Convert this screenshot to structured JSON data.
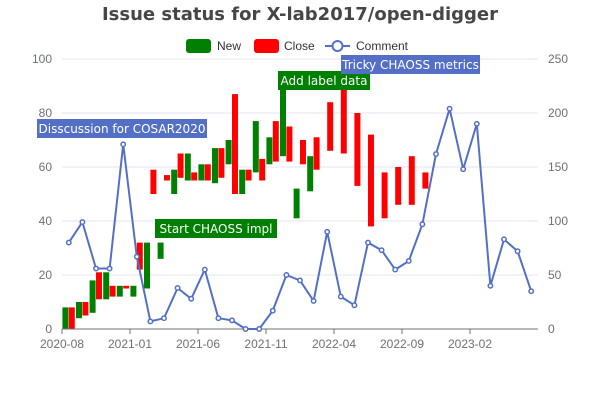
{
  "chart_data": {
    "type": "bar",
    "title": "Issue status for X-lab2017/open-digger",
    "legend": {
      "placement": "top-center",
      "items": [
        {
          "label": "New",
          "color": "#008000",
          "kind": "bar"
        },
        {
          "label": "Close",
          "color": "#ff0000",
          "kind": "bar"
        },
        {
          "label": "Comment",
          "color": "#5470c6",
          "kind": "line"
        }
      ]
    },
    "x_tick_labels": [
      "2020-08",
      "2021-01",
      "2021-06",
      "2021-11",
      "2022-04",
      "2022-09",
      "2023-02"
    ],
    "x_tick_every": 5,
    "categories": [
      "2020-08",
      "2020-09",
      "2020-10",
      "2020-11",
      "2020-12",
      "2021-01",
      "2021-02",
      "2021-03",
      "2021-04",
      "2021-05",
      "2021-06",
      "2021-07",
      "2021-08",
      "2021-09",
      "2021-10",
      "2021-11",
      "2021-12",
      "2022-01",
      "2022-02",
      "2022-03",
      "2022-04",
      "2022-05",
      "2022-06",
      "2022-07",
      "2022-08",
      "2022-09",
      "2022-10",
      "2022-11",
      "2022-12",
      "2023-01",
      "2023-02",
      "2023-03",
      "2023-04",
      "2023-05",
      "2023-06"
    ],
    "y_left": {
      "min": 0,
      "max": 100,
      "ticks": [
        0,
        20,
        40,
        60,
        80,
        100
      ]
    },
    "y_right": {
      "min": 0,
      "max": 250,
      "ticks": [
        0,
        50,
        100,
        150,
        200,
        250
      ]
    },
    "grid": true,
    "new_bars": [
      {
        "open": 0,
        "close": 8
      },
      {
        "open": 4,
        "close": 10
      },
      {
        "open": 6,
        "close": 18
      },
      {
        "open": 11,
        "close": 21
      },
      {
        "open": 12,
        "close": 16
      },
      {
        "open": 12,
        "close": 16
      },
      {
        "open": 15,
        "close": 32
      },
      {
        "open": 26,
        "close": 32
      },
      {
        "open": 50,
        "close": 59
      },
      {
        "open": 55,
        "close": 65
      },
      {
        "open": 55,
        "close": 61
      },
      {
        "open": 54,
        "close": 67
      },
      {
        "open": 61,
        "close": 70
      },
      {
        "open": 50,
        "close": 59
      },
      {
        "open": 58,
        "close": 77
      },
      {
        "open": 61,
        "close": 71
      },
      {
        "open": 64,
        "close": 94
      },
      {
        "open": 41,
        "close": 52
      },
      {
        "open": 51,
        "close": 64
      }
    ],
    "close_bars": [
      {
        "open": 8,
        "close": 0
      },
      {
        "open": 10,
        "close": 5
      },
      {
        "open": 21,
        "close": 11
      },
      {
        "open": 16,
        "close": 12
      },
      {
        "open": 16,
        "close": 15
      },
      {
        "open": 32,
        "close": 22
      },
      {
        "open": 59,
        "close": 50
      },
      {
        "open": 57,
        "close": 55
      },
      {
        "open": 65,
        "close": 56
      },
      {
        "open": 58,
        "close": 55
      },
      {
        "open": 61,
        "close": 55
      },
      {
        "open": 67,
        "close": 56
      },
      {
        "open": 87,
        "close": 50
      },
      {
        "open": 59,
        "close": 55
      },
      {
        "open": 63,
        "close": 55
      },
      {
        "open": 77,
        "close": 62
      },
      {
        "open": 75,
        "close": 62
      },
      {
        "open": 70,
        "close": 61
      },
      {
        "open": 71,
        "close": 59
      },
      {
        "open": 84,
        "close": 66
      },
      {
        "open": 92,
        "close": 65
      },
      {
        "open": 80,
        "close": 53
      },
      {
        "open": 72,
        "close": 38
      },
      {
        "open": 58,
        "close": 41
      },
      {
        "open": 60,
        "close": 46
      },
      {
        "open": 64,
        "close": 46
      },
      {
        "open": 58,
        "close": 52
      }
    ],
    "comment_series": {
      "name": "Comment",
      "values": [
        80,
        99,
        56,
        56,
        171,
        67,
        7,
        10,
        38,
        28,
        55,
        10,
        8,
        0,
        0,
        17,
        50,
        45,
        26,
        90,
        30,
        22,
        80,
        73,
        55,
        63,
        97,
        162,
        204,
        148,
        190,
        40,
        83,
        72,
        35
      ]
    },
    "annotations": [
      {
        "text": "Disscussion for COSAR2020",
        "color": "#5470c6",
        "position": "upper-left"
      },
      {
        "text": "Start CHAOSS impl",
        "color": "#008000",
        "position": "middle-left"
      },
      {
        "text": "Add label data",
        "color": "#008000",
        "position": "top-center"
      },
      {
        "text": "Tricky CHAOSS metrics",
        "color": "#5470c6",
        "position": "top-right"
      }
    ]
  }
}
